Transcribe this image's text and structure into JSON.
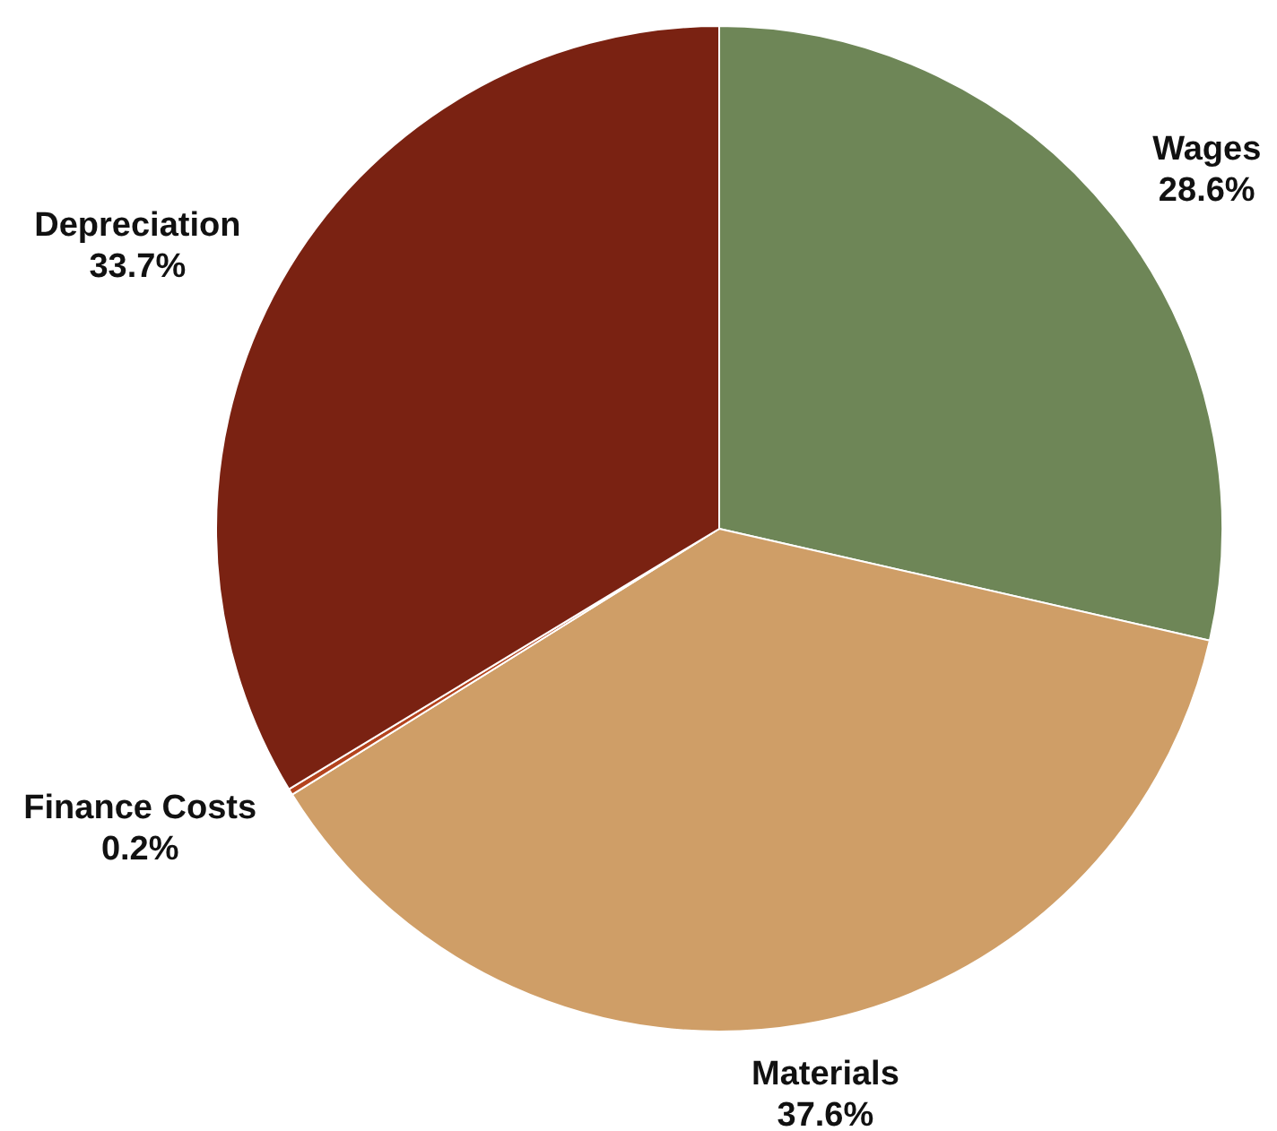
{
  "chart_data": {
    "type": "pie",
    "categories": [
      "Wages",
      "Materials",
      "Finance Costs",
      "Depreciation"
    ],
    "values": [
      28.6,
      37.6,
      0.2,
      33.7
    ],
    "colors": [
      "#6e8657",
      "#cf9e67",
      "#b4441e",
      "#7a2212"
    ],
    "value_labels": [
      "28.6%",
      "37.6%",
      "0.2%",
      "33.7%"
    ],
    "legend": false
  }
}
